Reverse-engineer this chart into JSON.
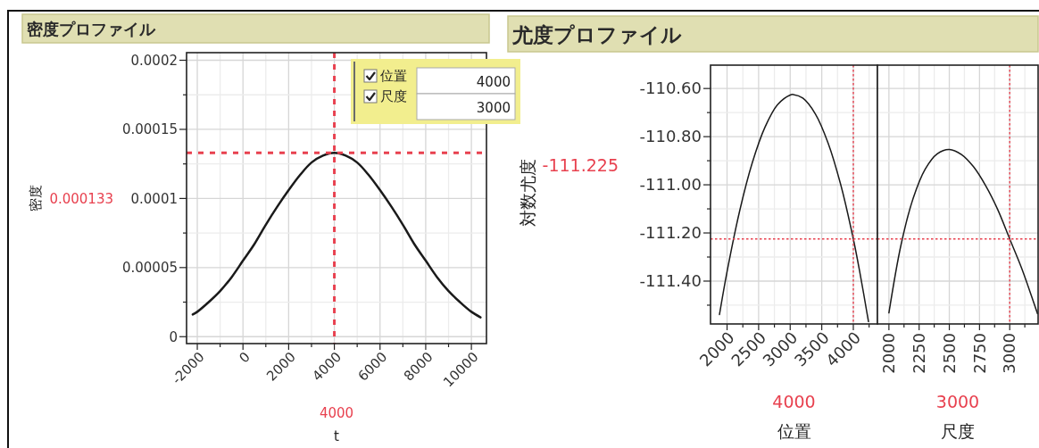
{
  "chart_data": [
    {
      "type": "line",
      "title": "密度プロファイル",
      "xlabel": "t",
      "ylabel": "密度",
      "x": [
        -2200,
        -2000,
        -1500,
        -1000,
        -500,
        0,
        500,
        1000,
        1500,
        2000,
        2500,
        3000,
        3500,
        4000,
        4500,
        5000,
        5500,
        6000,
        6500,
        7000,
        7500,
        8000,
        8500,
        9000,
        9500,
        10000,
        10400
      ],
      "series": [
        {
          "color": "#1a1a1a",
          "values": [
            1.6e-05,
            1.8e-05,
            2.5e-05,
            3.3e-05,
            4.3e-05,
            5.5e-05,
            6.7e-05,
            8.1e-05,
            9.4e-05,
            0.000106,
            0.000117,
            0.000126,
            0.000131,
            0.000133,
            0.000131,
            0.000126,
            0.000117,
            0.000106,
            9.4e-05,
            8.1e-05,
            6.7e-05,
            5.5e-05,
            4.3e-05,
            3.3e-05,
            2.5e-05,
            1.8e-05,
            1.4e-05
          ]
        }
      ],
      "xlim": [
        -2470,
        10660
      ],
      "ylim": [
        -5e-06,
        0.0002055
      ],
      "xticks": [
        -2000,
        {
          "value": -1000,
          "label": null
        },
        0,
        {
          "value": 1000,
          "label": null
        },
        2000,
        {
          "value": 3000,
          "label": null
        },
        4000,
        {
          "value": 5000,
          "label": null
        },
        6000,
        {
          "value": 7000,
          "label": null
        },
        8000,
        {
          "value": 9000,
          "label": null
        },
        10000
      ],
      "yticks": [
        0,
        {
          "value": 2.5e-05,
          "label": null
        },
        {
          "value": 5e-05,
          "label": "0.00005"
        },
        {
          "value": 7.5e-05,
          "label": null
        },
        0.0001,
        {
          "value": 0.000125,
          "label": null
        },
        0.00015,
        {
          "value": 0.000175,
          "label": null
        },
        0.0002
      ],
      "grid": true,
      "ref_lines": [
        {
          "axis": "x",
          "value": 4000,
          "label": "4000",
          "color": "#e8414f",
          "line_style": "dashed"
        },
        {
          "axis": "y",
          "value": 0.000133,
          "label": "0.000133",
          "color": "#e8414f",
          "line_style": "dashed"
        }
      ],
      "annotations": [
        "位置",
        "4000",
        "尺度",
        "3000"
      ]
    },
    {
      "type": "line",
      "title": "尤度プロファイル",
      "xlabel": "位置",
      "ylabel": "対数尤度",
      "x": [
        1880,
        2000,
        2200,
        2400,
        2600,
        2800,
        3000,
        3050,
        3200,
        3400,
        3600,
        3800,
        4000,
        4100,
        4240
      ],
      "series": [
        {
          "color": "#1a1a1a",
          "values": [
            -111.539,
            -111.361,
            -111.108,
            -110.908,
            -110.761,
            -110.667,
            -110.627,
            -110.625,
            -110.64,
            -110.706,
            -110.826,
            -110.999,
            -111.225,
            -111.359,
            -111.568
          ]
        }
      ],
      "xlim": [
        1738,
        4382
      ],
      "ylim": [
        -111.578,
        -110.503
      ],
      "xticks": [
        2000,
        {
          "value": 2250,
          "label": null
        },
        2500,
        {
          "value": 2750,
          "label": null
        },
        3000,
        {
          "value": 3250,
          "label": null
        },
        3500,
        {
          "value": 3750,
          "label": null
        },
        4000,
        {
          "value": 4250,
          "label": null
        }
      ],
      "yticks": [
        {
          "value": -110.6,
          "label": "-110.60"
        },
        {
          "value": -110.7,
          "label": null
        },
        {
          "value": -110.8,
          "label": "-110.80"
        },
        {
          "value": -110.9,
          "label": null
        },
        {
          "value": -111,
          "label": "-111.00"
        },
        {
          "value": -111.1,
          "label": null
        },
        {
          "value": -111.2,
          "label": "-111.20"
        },
        {
          "value": -111.3,
          "label": null
        },
        {
          "value": -111.4,
          "label": "-111.40"
        },
        {
          "value": -111.5,
          "label": null
        }
      ],
      "grid": true,
      "ref_lines": [
        {
          "axis": "x",
          "value": 4000,
          "label": "4000",
          "color": "#e8414f",
          "line_style": "dotted"
        },
        {
          "axis": "y",
          "value": -111.225,
          "label": "-111.225",
          "color": "#e8414f",
          "line_style": "dotted"
        }
      ]
    },
    {
      "type": "line",
      "xlabel": "尺度",
      "x": [
        2000,
        2100,
        2200,
        2300,
        2400,
        2500,
        2600,
        2700,
        2800,
        2900,
        3000,
        3100,
        3200,
        3230
      ],
      "series": [
        {
          "color": "#1a1a1a",
          "values": [
            -111.532,
            -111.25,
            -111.057,
            -110.935,
            -110.871,
            -110.853,
            -110.874,
            -110.925,
            -111.003,
            -111.102,
            -111.225,
            -111.348,
            -111.491,
            -111.535
          ]
        }
      ],
      "xlim": [
        1905,
        3235
      ],
      "ylim": [
        -111.578,
        -110.503
      ],
      "xticks": [
        2000,
        {
          "value": 2125,
          "label": null
        },
        2250,
        {
          "value": 2375,
          "label": null
        },
        2500,
        {
          "value": 2625,
          "label": null
        },
        2750,
        {
          "value": 2875,
          "label": null
        },
        3000,
        {
          "value": 3125,
          "label": null
        }
      ],
      "yticks": [
        -110.6,
        {
          "value": -110.7,
          "label": null
        },
        -110.8,
        {
          "value": -110.9,
          "label": null
        },
        -111,
        {
          "value": -111.1,
          "label": null
        },
        -111.2,
        {
          "value": -111.3,
          "label": null
        },
        -111.4,
        {
          "value": -111.5,
          "label": null
        }
      ],
      "grid": true,
      "tick_labels": "x",
      "ref_lines": [
        {
          "axis": "x",
          "value": 3000,
          "label": "3000",
          "color": "#e8414f",
          "line_style": "dotted"
        },
        {
          "axis": "y",
          "value": -111.225,
          "color": "#e8414f",
          "line_style": "dotted"
        }
      ]
    }
  ]
}
